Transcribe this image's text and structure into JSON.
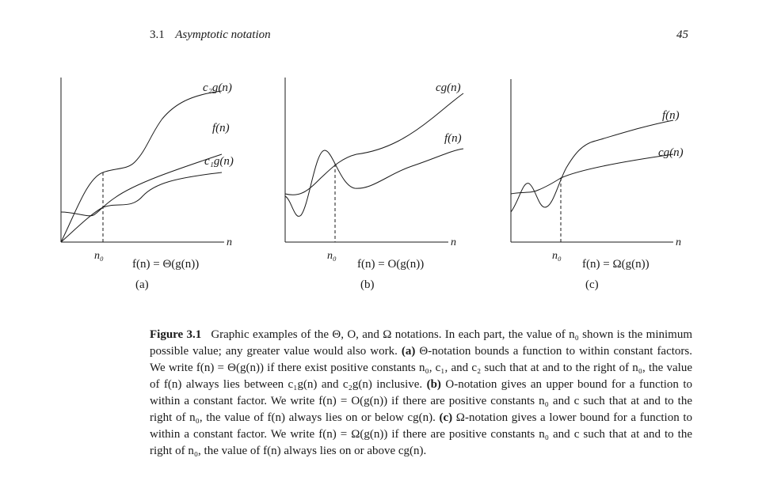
{
  "header": {
    "section_number": "3.1",
    "section_title": "Asymptotic notation",
    "page_number": "45"
  },
  "figure": {
    "panels": [
      {
        "id": "a",
        "curve_labels": [
          "c₂g(n)",
          "f(n)",
          "c₁g(n)"
        ],
        "x_axis_label": "n",
        "threshold_label": "n₀",
        "formula": "f(n) = Θ(g(n))",
        "panel_label": "(a)"
      },
      {
        "id": "b",
        "curve_labels": [
          "cg(n)",
          "f(n)"
        ],
        "x_axis_label": "n",
        "threshold_label": "n₀",
        "formula": "f(n) = O(g(n))",
        "panel_label": "(b)"
      },
      {
        "id": "c",
        "curve_labels": [
          "f(n)",
          "cg(n)"
        ],
        "x_axis_label": "n",
        "threshold_label": "n₀",
        "formula": "f(n) = Ω(g(n))",
        "panel_label": "(c)"
      }
    ]
  },
  "caption": {
    "label": "Figure 3.1",
    "intro": "Graphic examples of the Θ, O, and Ω notations. In each part, the value of n₀ shown is the minimum possible value; any greater value would also work.",
    "part_a_label": "(a)",
    "part_a_text": "Θ-notation bounds a function to within constant factors. We write f(n) = Θ(g(n)) if there exist positive constants n₀, c₁, and c₂ such that at and to the right of n₀, the value of f(n) always lies between c₁g(n) and c₂g(n) inclusive.",
    "part_b_label": "(b)",
    "part_b_text": "O-notation gives an upper bound for a function to within a constant factor. We write f(n) = O(g(n)) if there are positive constants n₀ and c such that at and to the right of n₀, the value of f(n) always lies on or below cg(n).",
    "part_c_label": "(c)",
    "part_c_text": "Ω-notation gives a lower bound for a function to within a constant factor. We write f(n) = Ω(g(n)) if there are positive constants n₀ and c such that at and to the right of n₀, the value of f(n) always lies on or above cg(n)."
  }
}
